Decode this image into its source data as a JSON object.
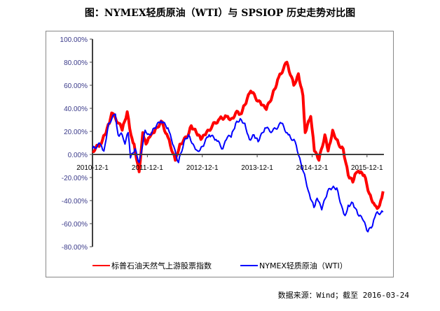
{
  "chart_data": {
    "type": "line",
    "title": "图：NYMEX轻质原油（WTI）与 SPSIOP 历史走势对比图",
    "xlabel": "",
    "ylabel": "",
    "x_unit": "months since 2010-12-1",
    "xlim": [
      0,
      63.7
    ],
    "ylim": [
      -80,
      100
    ],
    "y_ticks": [
      100,
      80,
      60,
      40,
      20,
      0,
      -20,
      -40,
      -60,
      -80
    ],
    "y_tick_labels": [
      "100.00%",
      "80.00%",
      "60.00%",
      "40.00%",
      "20.00%",
      "0.00%",
      "-20.00%",
      "-40.00%",
      "-60.00%",
      "-80.00%"
    ],
    "x_ticks": [
      0,
      12,
      24,
      36,
      48,
      60
    ],
    "x_tick_labels": [
      "2010-12-1",
      "2011-12-1",
      "2012-12-1",
      "2013-12-1",
      "2014-12-1",
      "2015-12-1"
    ],
    "legend_position": "bottom",
    "series": [
      {
        "name": "标普石油天然气上游股票指数",
        "color": "#ff0000",
        "points": [
          [
            0,
            3
          ],
          [
            1.7,
            9
          ],
          [
            2.7,
            17
          ],
          [
            3.7,
            27
          ],
          [
            4.2,
            36
          ],
          [
            5.8,
            27
          ],
          [
            6.5,
            21
          ],
          [
            7.6,
            37
          ],
          [
            8.4,
            17
          ],
          [
            9.1,
            9
          ],
          [
            10.2,
            -15
          ],
          [
            11,
            19
          ],
          [
            11.7,
            9
          ],
          [
            12.5,
            15
          ],
          [
            13.5,
            19
          ],
          [
            15,
            29
          ],
          [
            16.5,
            15
          ],
          [
            18.1,
            -5
          ],
          [
            19.1,
            9
          ],
          [
            20.6,
            15
          ],
          [
            21.6,
            25
          ],
          [
            22.7,
            19
          ],
          [
            23.7,
            13
          ],
          [
            24.7,
            17
          ],
          [
            26.2,
            25
          ],
          [
            27.8,
            31
          ],
          [
            29.3,
            33
          ],
          [
            30.3,
            31
          ],
          [
            31.8,
            37
          ],
          [
            32.3,
            35
          ],
          [
            33.3,
            43
          ],
          [
            34.6,
            55
          ],
          [
            36.9,
            43
          ],
          [
            38,
            39
          ],
          [
            39.3,
            51
          ],
          [
            40.7,
            67
          ],
          [
            42.5,
            80
          ],
          [
            44,
            60
          ],
          [
            45,
            70
          ],
          [
            46,
            51
          ],
          [
            46.5,
            19
          ],
          [
            47.7,
            33
          ],
          [
            48.5,
            3
          ],
          [
            49.5,
            -5
          ],
          [
            50.8,
            17
          ],
          [
            51.5,
            3
          ],
          [
            52.5,
            21
          ],
          [
            53.8,
            9
          ],
          [
            54.8,
            5
          ],
          [
            55.9,
            -18
          ],
          [
            56.9,
            -24
          ],
          [
            57.6,
            -16
          ],
          [
            58.4,
            -16
          ],
          [
            59.4,
            -18
          ],
          [
            60.5,
            -34
          ],
          [
            61.7,
            -44
          ],
          [
            62.5,
            -46
          ],
          [
            63,
            -40
          ],
          [
            63.5,
            -32
          ]
        ]
      },
      {
        "name": "NYMEX轻质原油（WTI）",
        "color": "#0000ff",
        "points": [
          [
            0,
            5
          ],
          [
            1.7,
            9
          ],
          [
            2.5,
            3
          ],
          [
            3.5,
            27
          ],
          [
            5,
            35
          ],
          [
            5.6,
            17
          ],
          [
            6.5,
            17
          ],
          [
            7.1,
            9
          ],
          [
            7.8,
            19
          ],
          [
            8.3,
            -3
          ],
          [
            9.3,
            5
          ],
          [
            10.2,
            -7
          ],
          [
            11.5,
            21
          ],
          [
            12.5,
            17
          ],
          [
            13.5,
            23
          ],
          [
            15,
            29
          ],
          [
            16.5,
            23
          ],
          [
            17.5,
            9
          ],
          [
            18.8,
            -7
          ],
          [
            20,
            11
          ],
          [
            21,
            17
          ],
          [
            22,
            9
          ],
          [
            23,
            3
          ],
          [
            24,
            7
          ],
          [
            25.5,
            17
          ],
          [
            27,
            13
          ],
          [
            28.5,
            5
          ],
          [
            29.5,
            15
          ],
          [
            30.3,
            15
          ],
          [
            31.3,
            27
          ],
          [
            32.3,
            31
          ],
          [
            33.3,
            27
          ],
          [
            34.3,
            13
          ],
          [
            35.3,
            17
          ],
          [
            36.2,
            11
          ],
          [
            37.7,
            23
          ],
          [
            39.3,
            20
          ],
          [
            41.3,
            27
          ],
          [
            42.8,
            17
          ],
          [
            44.3,
            11
          ],
          [
            45.3,
            -3
          ],
          [
            46.6,
            -22
          ],
          [
            47.4,
            -34
          ],
          [
            48.4,
            -46
          ],
          [
            49.1,
            -38
          ],
          [
            50.1,
            -48
          ],
          [
            51.4,
            -32
          ],
          [
            52.4,
            -29
          ],
          [
            53.4,
            -29
          ],
          [
            54.4,
            -44
          ],
          [
            55.2,
            -53
          ],
          [
            55.9,
            -44
          ],
          [
            56.9,
            -42
          ],
          [
            58,
            -52
          ],
          [
            59,
            -56
          ],
          [
            60.2,
            -67
          ],
          [
            61.2,
            -62
          ],
          [
            62,
            -51
          ],
          [
            63.5,
            -50
          ]
        ]
      }
    ]
  },
  "source_text": "数据来源：Wind；截至 2016-03-24",
  "colors": {
    "axis": "#404040",
    "ytick": "#3b3b8a",
    "frame": "#888888"
  }
}
